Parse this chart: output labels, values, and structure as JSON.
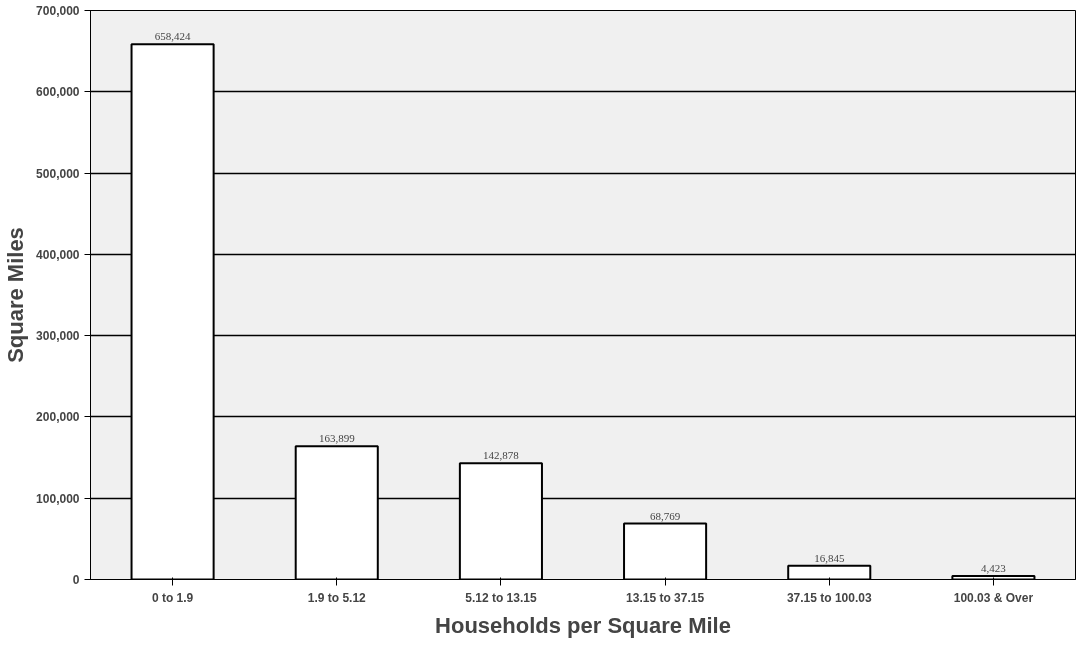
{
  "chart_data": {
    "type": "bar",
    "xlabel": "Households per Square Mile",
    "ylabel": "Square Miles",
    "categories": [
      "0 to 1.9",
      "1.9 to 5.12",
      "5.12 to 13.15",
      "13.15 to 37.15",
      "37.15 to 100.03",
      "100.03 & Over"
    ],
    "values": [
      658424,
      163899,
      142878,
      68769,
      16845,
      4423
    ],
    "value_labels": [
      "658,424",
      "163,899",
      "142,878",
      "68,769",
      "16,845",
      "4,423"
    ],
    "color": "#ffffff",
    "ylim": [
      0,
      700000
    ],
    "yticks": [
      {
        "value": 0,
        "label": "0"
      },
      {
        "value": 100000,
        "label": "100,000"
      },
      {
        "value": 200000,
        "label": "200,000"
      },
      {
        "value": 300000,
        "label": "300,000"
      },
      {
        "value": 400000,
        "label": "400,000"
      },
      {
        "value": 500000,
        "label": "500,000"
      },
      {
        "value": 600000,
        "label": "600,000"
      },
      {
        "value": 700000,
        "label": "700,000"
      }
    ],
    "grid": "y"
  }
}
